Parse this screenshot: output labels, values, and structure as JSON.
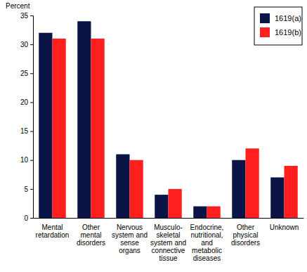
{
  "chart_data": {
    "type": "bar",
    "y_label": "Percent",
    "categories": [
      "Mental retardation",
      "Other mental disorders",
      "Nervous system and sense organs",
      "Musculo-skeletal system and connective tissue",
      "Endocrine, nutritional, and metabolic diseases",
      "Other physical disorders",
      "Unknown"
    ],
    "series": [
      {
        "name": "1619(a)",
        "color": "#0b1446",
        "values": [
          32,
          34,
          11,
          4,
          2,
          10,
          7
        ]
      },
      {
        "name": "1619(b)",
        "color": "#ff1f1f",
        "values": [
          31,
          31,
          10,
          5,
          2,
          12,
          9
        ]
      }
    ],
    "ylim": [
      0,
      35
    ],
    "yticks": [
      0,
      5,
      10,
      15,
      20,
      25,
      30,
      35
    ],
    "legend": "top-right",
    "grid": false
  }
}
